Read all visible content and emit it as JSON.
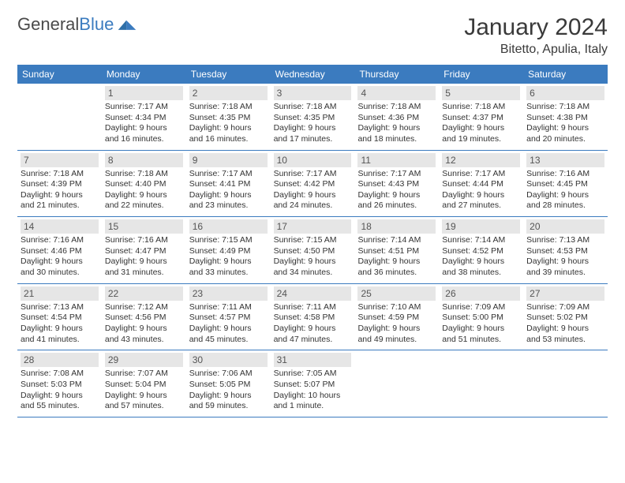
{
  "header": {
    "logo_general": "General",
    "logo_blue": "Blue",
    "month_title": "January 2024",
    "location": "Bitetto, Apulia, Italy"
  },
  "colors": {
    "header_bg": "#3b7bbf",
    "daynum_bg": "#e6e6e6",
    "border": "#3b7bbf"
  },
  "weekdays": [
    "Sunday",
    "Monday",
    "Tuesday",
    "Wednesday",
    "Thursday",
    "Friday",
    "Saturday"
  ],
  "weeks": [
    [
      {
        "num": "",
        "lines": []
      },
      {
        "num": "1",
        "lines": [
          "Sunrise: 7:17 AM",
          "Sunset: 4:34 PM",
          "Daylight: 9 hours",
          "and 16 minutes."
        ]
      },
      {
        "num": "2",
        "lines": [
          "Sunrise: 7:18 AM",
          "Sunset: 4:35 PM",
          "Daylight: 9 hours",
          "and 16 minutes."
        ]
      },
      {
        "num": "3",
        "lines": [
          "Sunrise: 7:18 AM",
          "Sunset: 4:35 PM",
          "Daylight: 9 hours",
          "and 17 minutes."
        ]
      },
      {
        "num": "4",
        "lines": [
          "Sunrise: 7:18 AM",
          "Sunset: 4:36 PM",
          "Daylight: 9 hours",
          "and 18 minutes."
        ]
      },
      {
        "num": "5",
        "lines": [
          "Sunrise: 7:18 AM",
          "Sunset: 4:37 PM",
          "Daylight: 9 hours",
          "and 19 minutes."
        ]
      },
      {
        "num": "6",
        "lines": [
          "Sunrise: 7:18 AM",
          "Sunset: 4:38 PM",
          "Daylight: 9 hours",
          "and 20 minutes."
        ]
      }
    ],
    [
      {
        "num": "7",
        "lines": [
          "Sunrise: 7:18 AM",
          "Sunset: 4:39 PM",
          "Daylight: 9 hours",
          "and 21 minutes."
        ]
      },
      {
        "num": "8",
        "lines": [
          "Sunrise: 7:18 AM",
          "Sunset: 4:40 PM",
          "Daylight: 9 hours",
          "and 22 minutes."
        ]
      },
      {
        "num": "9",
        "lines": [
          "Sunrise: 7:17 AM",
          "Sunset: 4:41 PM",
          "Daylight: 9 hours",
          "and 23 minutes."
        ]
      },
      {
        "num": "10",
        "lines": [
          "Sunrise: 7:17 AM",
          "Sunset: 4:42 PM",
          "Daylight: 9 hours",
          "and 24 minutes."
        ]
      },
      {
        "num": "11",
        "lines": [
          "Sunrise: 7:17 AM",
          "Sunset: 4:43 PM",
          "Daylight: 9 hours",
          "and 26 minutes."
        ]
      },
      {
        "num": "12",
        "lines": [
          "Sunrise: 7:17 AM",
          "Sunset: 4:44 PM",
          "Daylight: 9 hours",
          "and 27 minutes."
        ]
      },
      {
        "num": "13",
        "lines": [
          "Sunrise: 7:16 AM",
          "Sunset: 4:45 PM",
          "Daylight: 9 hours",
          "and 28 minutes."
        ]
      }
    ],
    [
      {
        "num": "14",
        "lines": [
          "Sunrise: 7:16 AM",
          "Sunset: 4:46 PM",
          "Daylight: 9 hours",
          "and 30 minutes."
        ]
      },
      {
        "num": "15",
        "lines": [
          "Sunrise: 7:16 AM",
          "Sunset: 4:47 PM",
          "Daylight: 9 hours",
          "and 31 minutes."
        ]
      },
      {
        "num": "16",
        "lines": [
          "Sunrise: 7:15 AM",
          "Sunset: 4:49 PM",
          "Daylight: 9 hours",
          "and 33 minutes."
        ]
      },
      {
        "num": "17",
        "lines": [
          "Sunrise: 7:15 AM",
          "Sunset: 4:50 PM",
          "Daylight: 9 hours",
          "and 34 minutes."
        ]
      },
      {
        "num": "18",
        "lines": [
          "Sunrise: 7:14 AM",
          "Sunset: 4:51 PM",
          "Daylight: 9 hours",
          "and 36 minutes."
        ]
      },
      {
        "num": "19",
        "lines": [
          "Sunrise: 7:14 AM",
          "Sunset: 4:52 PM",
          "Daylight: 9 hours",
          "and 38 minutes."
        ]
      },
      {
        "num": "20",
        "lines": [
          "Sunrise: 7:13 AM",
          "Sunset: 4:53 PM",
          "Daylight: 9 hours",
          "and 39 minutes."
        ]
      }
    ],
    [
      {
        "num": "21",
        "lines": [
          "Sunrise: 7:13 AM",
          "Sunset: 4:54 PM",
          "Daylight: 9 hours",
          "and 41 minutes."
        ]
      },
      {
        "num": "22",
        "lines": [
          "Sunrise: 7:12 AM",
          "Sunset: 4:56 PM",
          "Daylight: 9 hours",
          "and 43 minutes."
        ]
      },
      {
        "num": "23",
        "lines": [
          "Sunrise: 7:11 AM",
          "Sunset: 4:57 PM",
          "Daylight: 9 hours",
          "and 45 minutes."
        ]
      },
      {
        "num": "24",
        "lines": [
          "Sunrise: 7:11 AM",
          "Sunset: 4:58 PM",
          "Daylight: 9 hours",
          "and 47 minutes."
        ]
      },
      {
        "num": "25",
        "lines": [
          "Sunrise: 7:10 AM",
          "Sunset: 4:59 PM",
          "Daylight: 9 hours",
          "and 49 minutes."
        ]
      },
      {
        "num": "26",
        "lines": [
          "Sunrise: 7:09 AM",
          "Sunset: 5:00 PM",
          "Daylight: 9 hours",
          "and 51 minutes."
        ]
      },
      {
        "num": "27",
        "lines": [
          "Sunrise: 7:09 AM",
          "Sunset: 5:02 PM",
          "Daylight: 9 hours",
          "and 53 minutes."
        ]
      }
    ],
    [
      {
        "num": "28",
        "lines": [
          "Sunrise: 7:08 AM",
          "Sunset: 5:03 PM",
          "Daylight: 9 hours",
          "and 55 minutes."
        ]
      },
      {
        "num": "29",
        "lines": [
          "Sunrise: 7:07 AM",
          "Sunset: 5:04 PM",
          "Daylight: 9 hours",
          "and 57 minutes."
        ]
      },
      {
        "num": "30",
        "lines": [
          "Sunrise: 7:06 AM",
          "Sunset: 5:05 PM",
          "Daylight: 9 hours",
          "and 59 minutes."
        ]
      },
      {
        "num": "31",
        "lines": [
          "Sunrise: 7:05 AM",
          "Sunset: 5:07 PM",
          "Daylight: 10 hours",
          "and 1 minute."
        ]
      },
      {
        "num": "",
        "lines": []
      },
      {
        "num": "",
        "lines": []
      },
      {
        "num": "",
        "lines": []
      }
    ]
  ]
}
